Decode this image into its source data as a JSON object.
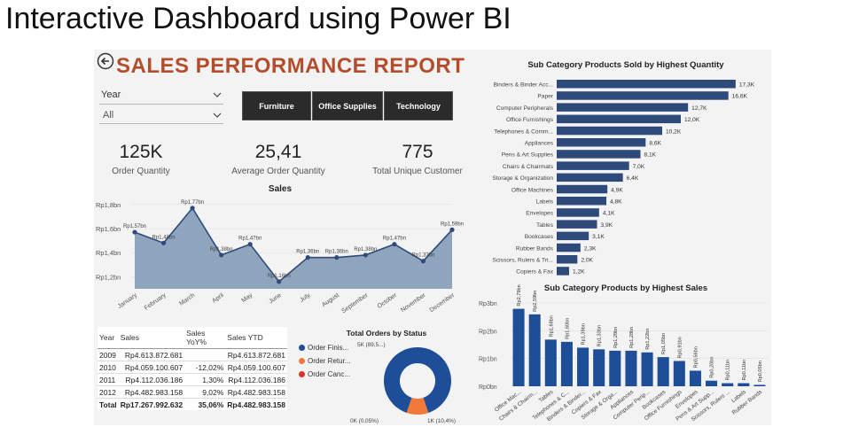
{
  "slide_title": "Interactive Dashboard using Power BI",
  "report": {
    "title": "SALES PERFORMANCE REPORT",
    "back_icon": "back-arrow-icon"
  },
  "slicer": {
    "label": "Year",
    "value": "All"
  },
  "categories": [
    "Furniture",
    "Office Supplies",
    "Technology"
  ],
  "kpis": [
    {
      "value": "125K",
      "label": "Order Quantity"
    },
    {
      "value": "25,41",
      "label": "Average Order Quantity"
    },
    {
      "value": "775",
      "label": "Total Unique Customer"
    }
  ],
  "sales_table": {
    "headers": [
      "Year",
      "Sales",
      "Sales YoY%",
      "Sales YTD"
    ],
    "rows": [
      [
        "2009",
        "Rp4.613.872.681",
        "",
        "Rp4.613.872.681"
      ],
      [
        "2010",
        "Rp4.059.100.607",
        "-12,02%",
        "Rp4.059.100.607"
      ],
      [
        "2011",
        "Rp4.112.036.186",
        "1,30%",
        "Rp4.112.036.186"
      ],
      [
        "2012",
        "Rp4.482.983.158",
        "9,02%",
        "Rp4.482.983.158"
      ]
    ],
    "total": [
      "Total",
      "Rp17.267.992.632",
      "35,06%",
      "Rp4.482.983.158"
    ]
  },
  "colors": {
    "accent": "#b34d2b",
    "navy": "#2e4a7a",
    "bar_blue": "#1f4e99",
    "area": "#8fa4bd",
    "orange": "#f07a3a",
    "red": "#d9342b"
  },
  "chart_data": [
    {
      "type": "area",
      "title": "Sales",
      "categories": [
        "January",
        "February",
        "March",
        "April",
        "May",
        "June",
        "July",
        "August",
        "September",
        "October",
        "November",
        "December"
      ],
      "values": [
        1.57,
        1.48,
        1.77,
        1.38,
        1.47,
        1.16,
        1.36,
        1.36,
        1.38,
        1.47,
        1.33,
        1.59
      ],
      "data_labels": [
        "Rp1,57bn",
        "Rp1,48bn",
        "Rp1,77bn",
        "Rp1,38bn",
        "Rp1,47bn",
        "Rp1,16bn",
        "Rp1,36bn",
        "Rp1,36bn",
        "Rp1,38bn",
        "Rp1,47bn",
        "Rp1,33bn",
        "Rp1,59bn"
      ],
      "y_ticks": [
        1.2,
        1.4,
        1.6,
        1.8
      ],
      "y_tick_labels": [
        "Rp1,2bn",
        "Rp1,4bn",
        "Rp1,6bn",
        "Rp1,8bn"
      ],
      "ylim": [
        1.1,
        1.85
      ]
    },
    {
      "type": "bar",
      "orientation": "horizontal",
      "title": "Sub Category Products Sold by Highest Quantity",
      "categories": [
        "Binders & Binder Acc...",
        "Paper",
        "Computer Peripherals",
        "Office Furnishings",
        "Telephones & Comm...",
        "Appliances",
        "Pens & Art Supplies",
        "Chairs & Chairmats",
        "Storage & Organization",
        "Office Machines",
        "Labels",
        "Envelopes",
        "Tables",
        "Bookcases",
        "Rubber Bands",
        "Scissors, Rulers & Tri...",
        "Copiers & Fax"
      ],
      "values": [
        17.3,
        16.6,
        12.7,
        12.0,
        10.2,
        8.6,
        8.1,
        7.0,
        6.4,
        4.9,
        4.8,
        4.1,
        3.9,
        3.1,
        2.3,
        2.0,
        1.2
      ],
      "data_labels": [
        "17,3K",
        "16,6K",
        "12,7K",
        "12,0K",
        "10,2K",
        "8,6K",
        "8,1K",
        "7,0K",
        "6,4K",
        "4,9K",
        "4,8K",
        "4,1K",
        "3,9K",
        "3,1K",
        "2,3K",
        "2,0K",
        "1,2K"
      ],
      "xlim": [
        0,
        18
      ]
    },
    {
      "type": "bar",
      "title": "Sub Category Products by Highest Sales",
      "categories": [
        "Office Mac...",
        "Chairs & Chairm...",
        "Tables",
        "Telephones & C...",
        "Binders & Binder...",
        "Copiers & Fax",
        "Storage & Orga...",
        "Appliances",
        "Computer Perip...",
        "Bookcases",
        "Office Furnishings",
        "Envelopes",
        "Pens & Art Supp...",
        "Scissors, Rulers ...",
        "Labels",
        "Rubber Bands"
      ],
      "values": [
        2.79,
        2.59,
        1.68,
        1.6,
        1.39,
        1.33,
        1.28,
        1.28,
        1.22,
        1.05,
        0.91,
        0.56,
        0.2,
        0.11,
        0.11,
        0.05
      ],
      "data_labels": [
        "Rp2,79bn",
        "Rp2,59bn",
        "Rp1,68bn",
        "Rp1,60bn",
        "Rp1,39bn",
        "Rp1,33bn",
        "Rp1,28bn",
        "Rp1,28bn",
        "Rp1,22bn",
        "Rp1,05bn",
        "Rp0,91bn",
        "Rp0,56bn",
        "Rp0,20bn",
        "Rp0,11bn",
        "Rp0,11bn",
        "Rp0,05bn"
      ],
      "y_ticks": [
        0,
        1,
        2,
        3
      ],
      "y_tick_labels": [
        "Rp0bn",
        "Rp1bn",
        "Rp2bn",
        "Rp3bn"
      ],
      "ylim": [
        0,
        3
      ]
    },
    {
      "type": "pie",
      "variant": "donut",
      "title": "Total Orders by Status",
      "legend": [
        "Order Finis...",
        "Order Retur...",
        "Order Canc..."
      ],
      "values": [
        89.5,
        10.4,
        0.05
      ],
      "colors": [
        "#1f4e99",
        "#f07a3a",
        "#d9342b"
      ],
      "data_labels": [
        "5K (89,5...)",
        "1K (10,4%)",
        "0K (0,05%)"
      ]
    }
  ]
}
